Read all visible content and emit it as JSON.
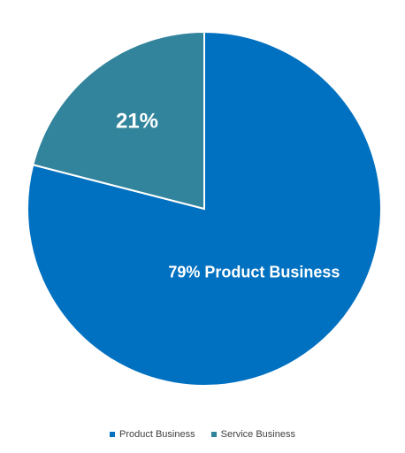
{
  "chart_data": {
    "type": "pie",
    "title": "",
    "start_angle_deg": 0,
    "direction": "clockwise",
    "slices": [
      {
        "name": "Product Business",
        "value": 79,
        "color": "#0070C0",
        "label": "79% Product Business"
      },
      {
        "name": "Service Business",
        "value": 21,
        "color": "#31849B",
        "label": "21%"
      }
    ],
    "legend": {
      "position": "bottom",
      "items": [
        {
          "label": "Product Business",
          "color": "#0070C0"
        },
        {
          "label": "Service Business",
          "color": "#31849B"
        }
      ]
    }
  }
}
